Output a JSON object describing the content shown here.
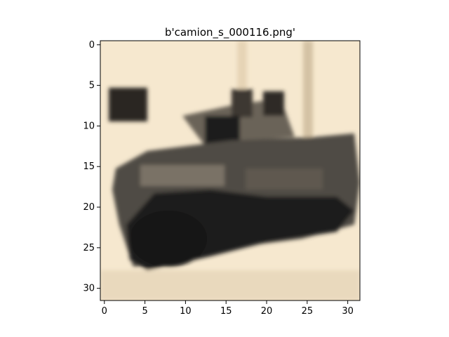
{
  "chart_data": {
    "type": "image",
    "title": "b'camion_s_000116.png'",
    "xlabel": "",
    "ylabel": "",
    "image_size": [
      32,
      32
    ],
    "xlim": [
      -0.5,
      31.5
    ],
    "ylim": [
      31.5,
      -0.5
    ],
    "x_ticks": [
      0,
      5,
      10,
      15,
      20,
      25,
      30
    ],
    "y_ticks": [
      0,
      5,
      10,
      15,
      20,
      25,
      30
    ],
    "grid": false,
    "legend": "none"
  }
}
